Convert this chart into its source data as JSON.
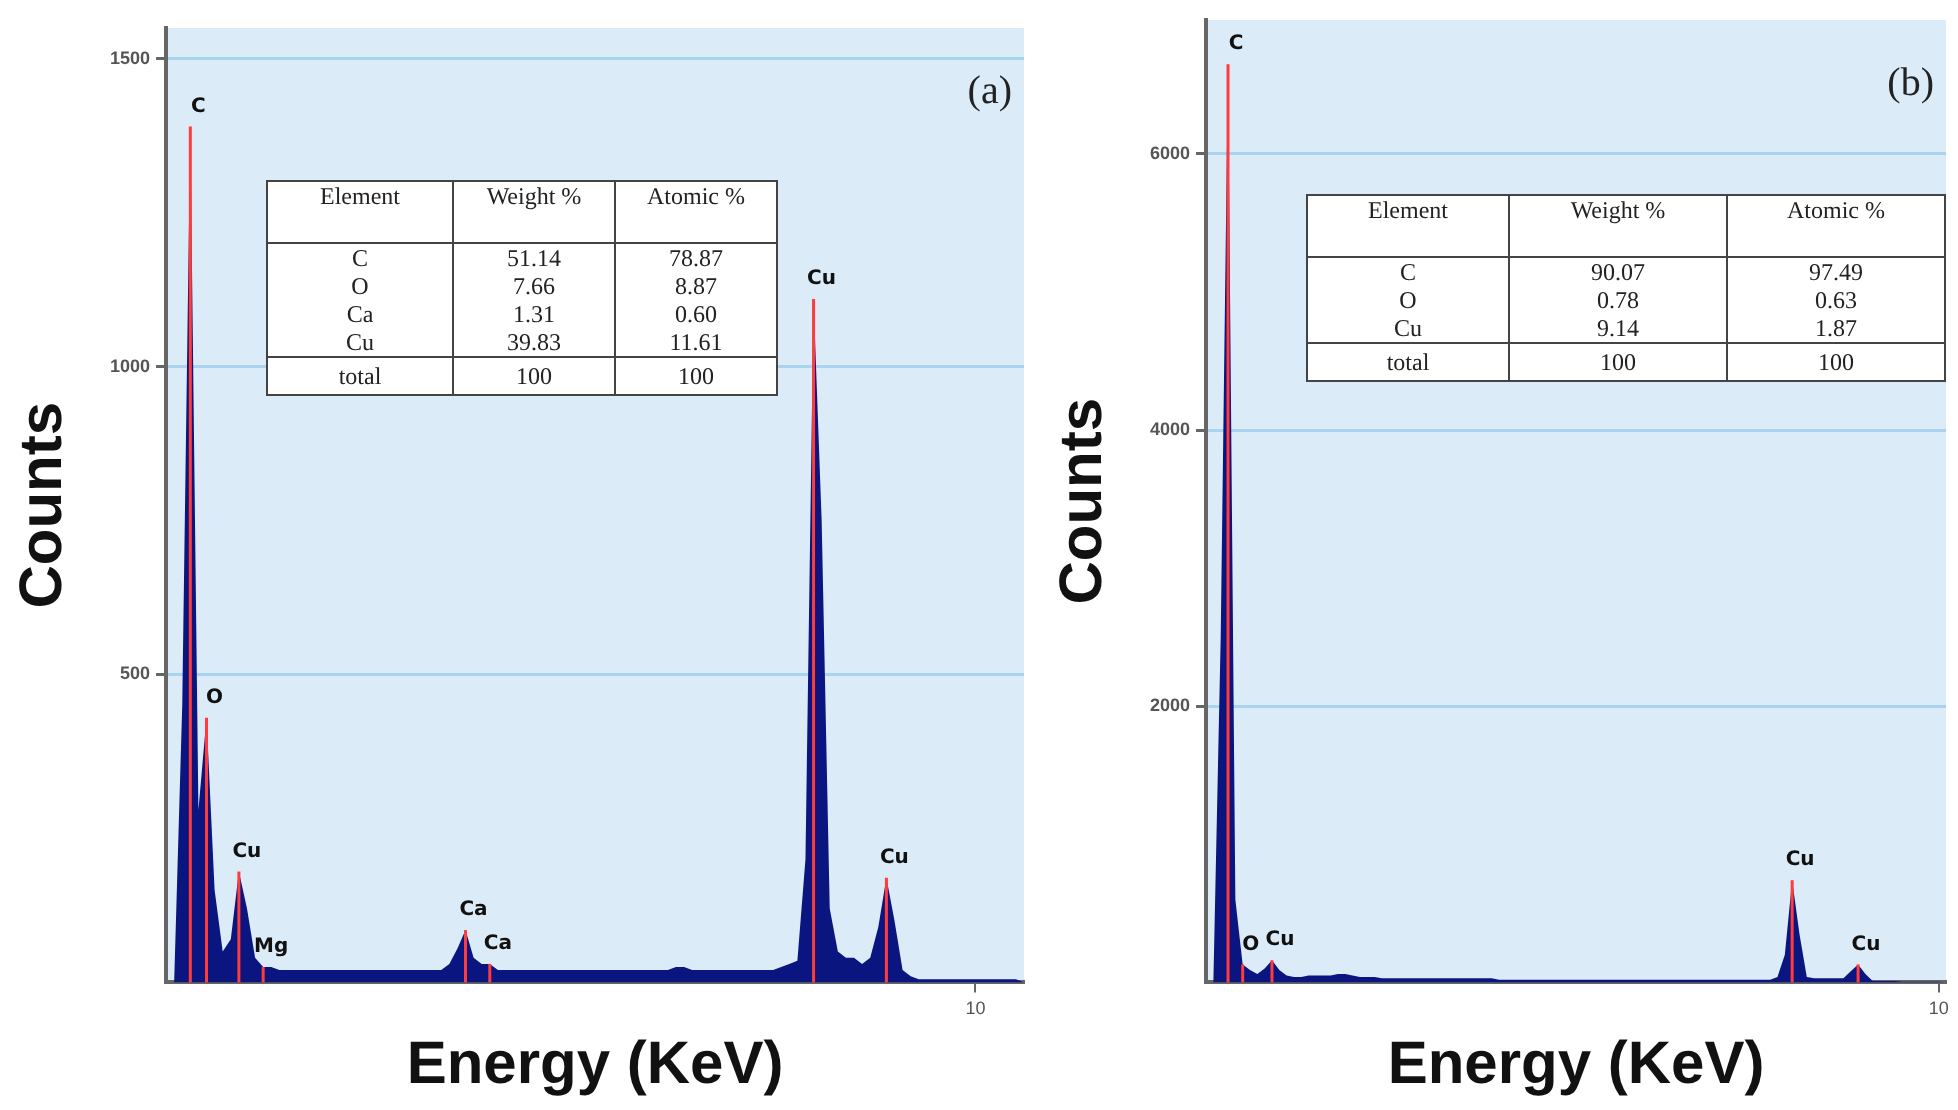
{
  "chart_data": [
    {
      "type": "area",
      "title": "(a)",
      "xlabel": "Energy (KeV)",
      "ylabel": "Counts",
      "ylim": [
        0,
        1550
      ],
      "yticks": [
        500,
        1000,
        1500
      ],
      "grid": "y",
      "legend": false,
      "categories": [
        null,
        null,
        null,
        null,
        null,
        null,
        null,
        null,
        null,
        null,
        null,
        null,
        null,
        null,
        null,
        null,
        null,
        null,
        null,
        null,
        null,
        null,
        null,
        null,
        null,
        null,
        null,
        null,
        null,
        null,
        null,
        null,
        null,
        null,
        null,
        null,
        null,
        null,
        null,
        null,
        null,
        null,
        null,
        null,
        null,
        null,
        null,
        null,
        null,
        null,
        null,
        null,
        null,
        null,
        null,
        null,
        null,
        null,
        null,
        null,
        null,
        null,
        null,
        null,
        null,
        null,
        null,
        null,
        null,
        null,
        null,
        null,
        null,
        null,
        null,
        null,
        null,
        null,
        null,
        null,
        null,
        null,
        null,
        null,
        null,
        null,
        null,
        null,
        null,
        null,
        null,
        null,
        null,
        null,
        null,
        null,
        null,
        null,
        null,
        null,
        "10",
        null,
        null,
        null,
        null,
        null,
        null
      ],
      "series": [
        {
          "color": "#0a1580",
          "values": [
            0,
            0,
            450,
            1390,
            280,
            430,
            150,
            50,
            70,
            180,
            120,
            40,
            25,
            25,
            20,
            20,
            20,
            20,
            20,
            20,
            20,
            20,
            20,
            20,
            20,
            20,
            20,
            20,
            20,
            20,
            20,
            20,
            20,
            20,
            20,
            30,
            55,
            85,
            40,
            30,
            30,
            20,
            20,
            20,
            20,
            20,
            20,
            20,
            20,
            20,
            20,
            20,
            20,
            20,
            20,
            20,
            20,
            20,
            20,
            20,
            20,
            20,
            20,
            25,
            25,
            20,
            20,
            20,
            20,
            20,
            20,
            20,
            20,
            20,
            20,
            20,
            25,
            30,
            35,
            200,
            1110,
            750,
            120,
            50,
            40,
            40,
            30,
            40,
            90,
            170,
            100,
            20,
            10,
            5,
            5,
            5,
            5,
            5,
            5,
            5,
            5,
            5,
            5,
            5,
            5,
            5,
            0
          ],
          "value_labels": [
            null,
            null,
            null,
            "C",
            null,
            "O",
            null,
            null,
            null,
            "Cu",
            null,
            null,
            "Mg",
            null,
            null,
            null,
            null,
            null,
            null,
            null,
            null,
            null,
            null,
            null,
            null,
            null,
            null,
            null,
            null,
            null,
            null,
            null,
            null,
            null,
            null,
            null,
            null,
            "Ca",
            null,
            null,
            "Ca",
            null,
            null,
            null,
            null,
            null,
            null,
            null,
            null,
            null,
            null,
            null,
            null,
            null,
            null,
            null,
            null,
            null,
            null,
            null,
            null,
            null,
            null,
            null,
            null,
            null,
            null,
            null,
            null,
            null,
            null,
            null,
            null,
            null,
            null,
            null,
            null,
            null,
            null,
            null,
            "Cu",
            null,
            null,
            null,
            null,
            null,
            null,
            null,
            null,
            "Cu",
            null,
            null,
            null,
            null,
            null,
            null,
            null,
            null,
            null,
            null,
            null,
            null,
            null,
            null,
            null,
            null,
            null
          ]
        }
      ],
      "annotations": [
        "Element",
        "Weight %",
        "Atomic %",
        "C",
        "51.14",
        "78.87",
        "O",
        "7.66",
        "8.87",
        "Ca",
        "1.31",
        "0.60",
        "Cu",
        "39.83",
        "11.61",
        "total",
        "100",
        "100"
      ]
    },
    {
      "type": "area",
      "title": "(b)",
      "xlabel": "Energy (KeV)",
      "ylabel": "Counts",
      "ylim": [
        0,
        6970
      ],
      "yticks": [
        2000,
        4000,
        6000
      ],
      "grid": "y",
      "legend": false,
      "categories": [
        null,
        null,
        null,
        null,
        null,
        null,
        null,
        null,
        null,
        null,
        null,
        null,
        null,
        null,
        null,
        null,
        null,
        null,
        null,
        null,
        null,
        null,
        null,
        null,
        null,
        null,
        null,
        null,
        null,
        null,
        null,
        null,
        null,
        null,
        null,
        null,
        null,
        null,
        null,
        null,
        null,
        null,
        null,
        null,
        null,
        null,
        null,
        null,
        null,
        null,
        null,
        null,
        null,
        null,
        null,
        null,
        null,
        null,
        null,
        null,
        null,
        null,
        null,
        null,
        null,
        null,
        null,
        null,
        null,
        null,
        null,
        null,
        null,
        null,
        null,
        null,
        null,
        null,
        null,
        null,
        null,
        null,
        null,
        null,
        null,
        null,
        null,
        null,
        null,
        null,
        null,
        null,
        null,
        null,
        null,
        null,
        null,
        null,
        null,
        null,
        "10",
        null
      ],
      "series": [
        {
          "color": "#0a1580",
          "values": [
            0,
            0,
            2500,
            6650,
            600,
            130,
            90,
            60,
            100,
            160,
            90,
            50,
            40,
            40,
            50,
            50,
            50,
            50,
            60,
            60,
            50,
            40,
            40,
            40,
            30,
            30,
            30,
            30,
            30,
            30,
            30,
            30,
            30,
            30,
            30,
            30,
            30,
            30,
            30,
            30,
            20,
            20,
            20,
            20,
            20,
            20,
            20,
            20,
            20,
            20,
            20,
            20,
            20,
            20,
            20,
            20,
            20,
            20,
            20,
            20,
            20,
            20,
            20,
            20,
            20,
            20,
            20,
            20,
            20,
            20,
            20,
            20,
            20,
            20,
            20,
            20,
            20,
            20,
            40,
            200,
            740,
            350,
            40,
            30,
            30,
            30,
            30,
            30,
            80,
            130,
            60,
            10,
            10,
            10,
            10,
            5,
            5,
            5,
            5,
            5,
            5,
            0
          ],
          "value_labels": [
            null,
            null,
            null,
            "C",
            null,
            "O",
            null,
            null,
            null,
            "Cu",
            null,
            null,
            null,
            null,
            null,
            null,
            null,
            null,
            null,
            null,
            null,
            null,
            null,
            null,
            null,
            null,
            null,
            null,
            null,
            null,
            null,
            null,
            null,
            null,
            null,
            null,
            null,
            null,
            null,
            null,
            null,
            null,
            null,
            null,
            null,
            null,
            null,
            null,
            null,
            null,
            null,
            null,
            null,
            null,
            null,
            null,
            null,
            null,
            null,
            null,
            null,
            null,
            null,
            null,
            null,
            null,
            null,
            null,
            null,
            null,
            null,
            null,
            null,
            null,
            null,
            null,
            null,
            null,
            null,
            null,
            "Cu",
            null,
            null,
            null,
            null,
            null,
            null,
            null,
            null,
            "Cu",
            null,
            null,
            null,
            null,
            null,
            null,
            null,
            null,
            null,
            null,
            null,
            null
          ]
        }
      ],
      "annotations": [
        "Element",
        "Weight %",
        "Atomic %",
        "C",
        "90.07",
        "97.49",
        "O",
        "0.78",
        "0.63",
        "Cu",
        "9.14",
        "1.87",
        "total",
        "100",
        "100"
      ]
    }
  ]
}
